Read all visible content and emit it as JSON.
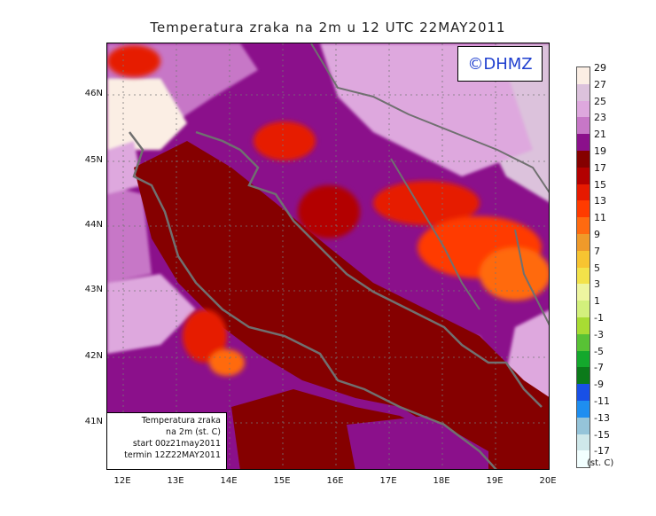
{
  "title": "Temperatura zraka na 2m u 12 UTC 22MAY2011",
  "logo_text": "©DHMZ",
  "info_box": {
    "line1": "Temperatura zraka",
    "line2": "na 2m (st. C)",
    "line3": "start 00z21may2011",
    "line4": "termin 12Z22MAY2011"
  },
  "latitude_labels": [
    "46N",
    "45N",
    "44N",
    "43N",
    "42N",
    "41N"
  ],
  "longitude_labels": [
    "12E",
    "13E",
    "14E",
    "15E",
    "16E",
    "17E",
    "18E",
    "19E",
    "20E"
  ],
  "legend": {
    "unit": "(st. C)",
    "labels": [
      "29",
      "27",
      "25",
      "23",
      "21",
      "19",
      "17",
      "15",
      "13",
      "11",
      "9",
      "7",
      "5",
      "3",
      "1",
      "-1",
      "-3",
      "-5",
      "-7",
      "-9",
      "-11",
      "-13",
      "-15",
      "-17"
    ],
    "colors": [
      "#fbeee4",
      "#dcc2dc",
      "#dea8de",
      "#c777c7",
      "#8b108b",
      "#850000",
      "#b30000",
      "#e61a00",
      "#ff3b00",
      "#ff6a10",
      "#ef9a2a",
      "#f7c431",
      "#f3e24a",
      "#eef5a0",
      "#d3f07c",
      "#a8dc33",
      "#58c235",
      "#14a82c",
      "#0b7a1a",
      "#1850e6",
      "#1e8ef0",
      "#95c4d9",
      "#cfe8ea",
      "#f2ffff"
    ]
  },
  "colors": {
    "sea_base": "#8b0000",
    "land_base": "#8b108b",
    "coastline": "#707070",
    "logo_text": "#1f3fcf"
  }
}
